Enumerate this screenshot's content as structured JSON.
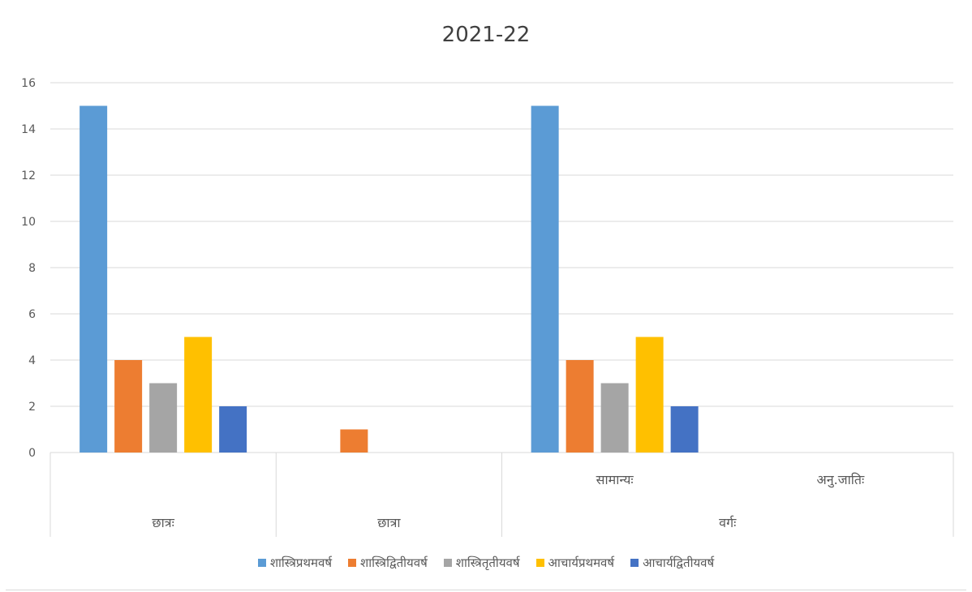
{
  "chart_data": {
    "type": "bar",
    "title": "2021-22",
    "ylim": [
      0,
      16
    ],
    "yticks": [
      0,
      2,
      4,
      6,
      8,
      10,
      12,
      14,
      16
    ],
    "grid": true,
    "legend_position": "bottom",
    "categories": [
      {
        "label": "",
        "group": "छात्रः"
      },
      {
        "label": "",
        "group": "छात्रा"
      },
      {
        "label": "सामान्यः",
        "group": "वर्गः"
      },
      {
        "label": "अनु.जातिः",
        "group": "वर्गः"
      }
    ],
    "groups": [
      "छात्रः",
      "छात्रा",
      "वर्गः"
    ],
    "series": [
      {
        "name": "शास्त्रिप्रथमवर्ष",
        "color": "#5B9BD5",
        "values": [
          15,
          0,
          15,
          0
        ]
      },
      {
        "name": "शास्त्रिद्वितीयवर्ष",
        "color": "#ED7D31",
        "values": [
          4,
          1,
          4,
          0
        ]
      },
      {
        "name": "शास्त्रितृतीयवर्ष",
        "color": "#A5A5A5",
        "values": [
          3,
          0,
          3,
          0
        ]
      },
      {
        "name": "आचार्यप्रथमवर्ष",
        "color": "#FFC000",
        "values": [
          5,
          0,
          5,
          0
        ]
      },
      {
        "name": "आचार्यद्वितीयवर्ष",
        "color": "#4472C4",
        "values": [
          2,
          0,
          2,
          0
        ]
      }
    ],
    "colors": {
      "grid": "#d9d9d9",
      "axis_text": "#595959",
      "title": "#404040"
    }
  }
}
